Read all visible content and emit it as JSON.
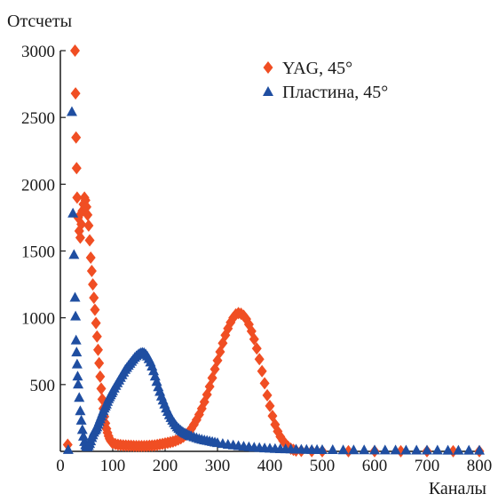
{
  "chart_data": {
    "type": "scatter",
    "title": "",
    "xlabel": "Каналы",
    "ylabel": "Отсчеты",
    "xlim": [
      0,
      800
    ],
    "ylim": [
      0,
      3000
    ],
    "x_ticks": [
      "0",
      "100",
      "200",
      "300",
      "400",
      "500",
      "600",
      "700",
      "800"
    ],
    "y_ticks": [
      "500",
      "1000",
      "1500",
      "2000",
      "2500",
      "3000"
    ],
    "grid": false,
    "legend_position": "top-right",
    "series": [
      {
        "name": "YAG, 45°",
        "marker": "diamond",
        "color": "#f04e23",
        "points": [
          [
            14,
            50
          ],
          [
            28,
            3000
          ],
          [
            29,
            2680
          ],
          [
            30,
            2350
          ],
          [
            31,
            2120
          ],
          [
            32,
            1900
          ],
          [
            34,
            1750
          ],
          [
            36,
            1650
          ],
          [
            38,
            1600
          ],
          [
            40,
            1700
          ],
          [
            42,
            1800
          ],
          [
            44,
            1850
          ],
          [
            46,
            1900
          ],
          [
            48,
            1880
          ],
          [
            50,
            1830
          ],
          [
            52,
            1770
          ],
          [
            54,
            1690
          ],
          [
            56,
            1580
          ],
          [
            58,
            1450
          ],
          [
            60,
            1350
          ],
          [
            62,
            1250
          ],
          [
            64,
            1150
          ],
          [
            66,
            1060
          ],
          [
            68,
            960
          ],
          [
            70,
            860
          ],
          [
            72,
            760
          ],
          [
            74,
            660
          ],
          [
            76,
            560
          ],
          [
            78,
            470
          ],
          [
            80,
            390
          ],
          [
            82,
            320
          ],
          [
            84,
            260
          ],
          [
            86,
            210
          ],
          [
            88,
            170
          ],
          [
            90,
            140
          ],
          [
            92,
            115
          ],
          [
            94,
            95
          ],
          [
            96,
            80
          ],
          [
            98,
            70
          ],
          [
            100,
            62
          ],
          [
            105,
            55
          ],
          [
            110,
            50
          ],
          [
            115,
            47
          ],
          [
            120,
            45
          ],
          [
            125,
            44
          ],
          [
            130,
            43
          ],
          [
            135,
            42
          ],
          [
            140,
            41
          ],
          [
            145,
            40
          ],
          [
            150,
            40
          ],
          [
            155,
            40
          ],
          [
            160,
            40
          ],
          [
            165,
            41
          ],
          [
            170,
            42
          ],
          [
            175,
            43
          ],
          [
            180,
            45
          ],
          [
            185,
            48
          ],
          [
            190,
            52
          ],
          [
            195,
            56
          ],
          [
            200,
            60
          ],
          [
            205,
            64
          ],
          [
            210,
            68
          ],
          [
            215,
            73
          ],
          [
            220,
            80
          ],
          [
            225,
            88
          ],
          [
            230,
            97
          ],
          [
            235,
            110
          ],
          [
            240,
            125
          ],
          [
            245,
            145
          ],
          [
            250,
            170
          ],
          [
            255,
            200
          ],
          [
            260,
            235
          ],
          [
            265,
            275
          ],
          [
            270,
            320
          ],
          [
            275,
            370
          ],
          [
            280,
            425
          ],
          [
            285,
            485
          ],
          [
            290,
            550
          ],
          [
            295,
            615
          ],
          [
            300,
            680
          ],
          [
            305,
            745
          ],
          [
            310,
            810
          ],
          [
            315,
            870
          ],
          [
            320,
            920
          ],
          [
            325,
            965
          ],
          [
            330,
            1000
          ],
          [
            335,
            1025
          ],
          [
            340,
            1035
          ],
          [
            345,
            1030
          ],
          [
            350,
            1015
          ],
          [
            355,
            990
          ],
          [
            360,
            950
          ],
          [
            365,
            900
          ],
          [
            370,
            840
          ],
          [
            375,
            770
          ],
          [
            380,
            690
          ],
          [
            385,
            600
          ],
          [
            390,
            510
          ],
          [
            395,
            420
          ],
          [
            400,
            340
          ],
          [
            405,
            265
          ],
          [
            410,
            200
          ],
          [
            415,
            150
          ],
          [
            420,
            110
          ],
          [
            425,
            80
          ],
          [
            430,
            55
          ],
          [
            435,
            35
          ],
          [
            440,
            20
          ],
          [
            445,
            12
          ],
          [
            450,
            6
          ],
          [
            460,
            3
          ],
          [
            480,
            2
          ],
          [
            500,
            1
          ],
          [
            550,
            1
          ],
          [
            600,
            1
          ],
          [
            650,
            1
          ],
          [
            700,
            1
          ],
          [
            750,
            1
          ],
          [
            800,
            1
          ]
        ]
      },
      {
        "name": "Пластина, 45°",
        "marker": "triangle",
        "color": "#1f4ea1",
        "points": [
          [
            15,
            10
          ],
          [
            22,
            2540
          ],
          [
            24,
            1780
          ],
          [
            26,
            1470
          ],
          [
            28,
            1150
          ],
          [
            29,
            1010
          ],
          [
            30,
            830
          ],
          [
            31,
            740
          ],
          [
            32,
            650
          ],
          [
            33,
            560
          ],
          [
            34,
            500
          ],
          [
            36,
            400
          ],
          [
            38,
            300
          ],
          [
            40,
            230
          ],
          [
            42,
            160
          ],
          [
            44,
            110
          ],
          [
            46,
            70
          ],
          [
            48,
            45
          ],
          [
            50,
            35
          ],
          [
            52,
            30
          ],
          [
            54,
            40
          ],
          [
            56,
            55
          ],
          [
            58,
            75
          ],
          [
            60,
            100
          ],
          [
            62,
            120
          ],
          [
            64,
            140
          ],
          [
            66,
            155
          ],
          [
            68,
            165
          ],
          [
            70,
            180
          ],
          [
            72,
            200
          ],
          [
            74,
            220
          ],
          [
            76,
            240
          ],
          [
            78,
            260
          ],
          [
            80,
            280
          ],
          [
            82,
            300
          ],
          [
            84,
            320
          ],
          [
            86,
            335
          ],
          [
            88,
            350
          ],
          [
            90,
            370
          ],
          [
            92,
            390
          ],
          [
            94,
            405
          ],
          [
            96,
            420
          ],
          [
            98,
            435
          ],
          [
            100,
            450
          ],
          [
            103,
            470
          ],
          [
            106,
            490
          ],
          [
            109,
            510
          ],
          [
            112,
            530
          ],
          [
            115,
            550
          ],
          [
            118,
            570
          ],
          [
            121,
            590
          ],
          [
            124,
            610
          ],
          [
            127,
            625
          ],
          [
            130,
            640
          ],
          [
            133,
            655
          ],
          [
            136,
            670
          ],
          [
            139,
            685
          ],
          [
            142,
            700
          ],
          [
            145,
            712
          ],
          [
            148,
            722
          ],
          [
            151,
            730
          ],
          [
            154,
            736
          ],
          [
            157,
            738
          ],
          [
            160,
            735
          ],
          [
            163,
            725
          ],
          [
            166,
            710
          ],
          [
            169,
            690
          ],
          [
            172,
            665
          ],
          [
            175,
            635
          ],
          [
            178,
            600
          ],
          [
            181,
            560
          ],
          [
            184,
            520
          ],
          [
            187,
            480
          ],
          [
            190,
            445
          ],
          [
            193,
            410
          ],
          [
            196,
            380
          ],
          [
            199,
            350
          ],
          [
            202,
            320
          ],
          [
            205,
            295
          ],
          [
            208,
            270
          ],
          [
            211,
            250
          ],
          [
            214,
            230
          ],
          [
            217,
            212
          ],
          [
            220,
            195
          ],
          [
            223,
            180
          ],
          [
            226,
            168
          ],
          [
            229,
            157
          ],
          [
            232,
            148
          ],
          [
            235,
            140
          ],
          [
            238,
            133
          ],
          [
            241,
            127
          ],
          [
            244,
            121
          ],
          [
            247,
            116
          ],
          [
            250,
            112
          ],
          [
            255,
            105
          ],
          [
            260,
            98
          ],
          [
            265,
            92
          ],
          [
            270,
            87
          ],
          [
            275,
            82
          ],
          [
            280,
            78
          ],
          [
            285,
            74
          ],
          [
            290,
            70
          ],
          [
            295,
            66
          ],
          [
            300,
            62
          ],
          [
            310,
            55
          ],
          [
            320,
            49
          ],
          [
            330,
            44
          ],
          [
            340,
            39
          ],
          [
            350,
            35
          ],
          [
            360,
            31
          ],
          [
            370,
            28
          ],
          [
            380,
            25
          ],
          [
            390,
            22
          ],
          [
            400,
            20
          ],
          [
            410,
            18
          ],
          [
            420,
            16
          ],
          [
            430,
            15
          ],
          [
            440,
            14
          ],
          [
            450,
            13
          ],
          [
            460,
            12
          ],
          [
            470,
            11
          ],
          [
            480,
            10
          ],
          [
            490,
            10
          ],
          [
            500,
            9
          ],
          [
            520,
            9
          ],
          [
            540,
            8
          ],
          [
            560,
            8
          ],
          [
            580,
            8
          ],
          [
            600,
            7
          ],
          [
            620,
            7
          ],
          [
            640,
            7
          ],
          [
            660,
            6
          ],
          [
            680,
            6
          ],
          [
            700,
            6
          ],
          [
            720,
            6
          ],
          [
            740,
            5
          ],
          [
            760,
            5
          ],
          [
            780,
            5
          ],
          [
            800,
            5
          ]
        ]
      }
    ]
  }
}
